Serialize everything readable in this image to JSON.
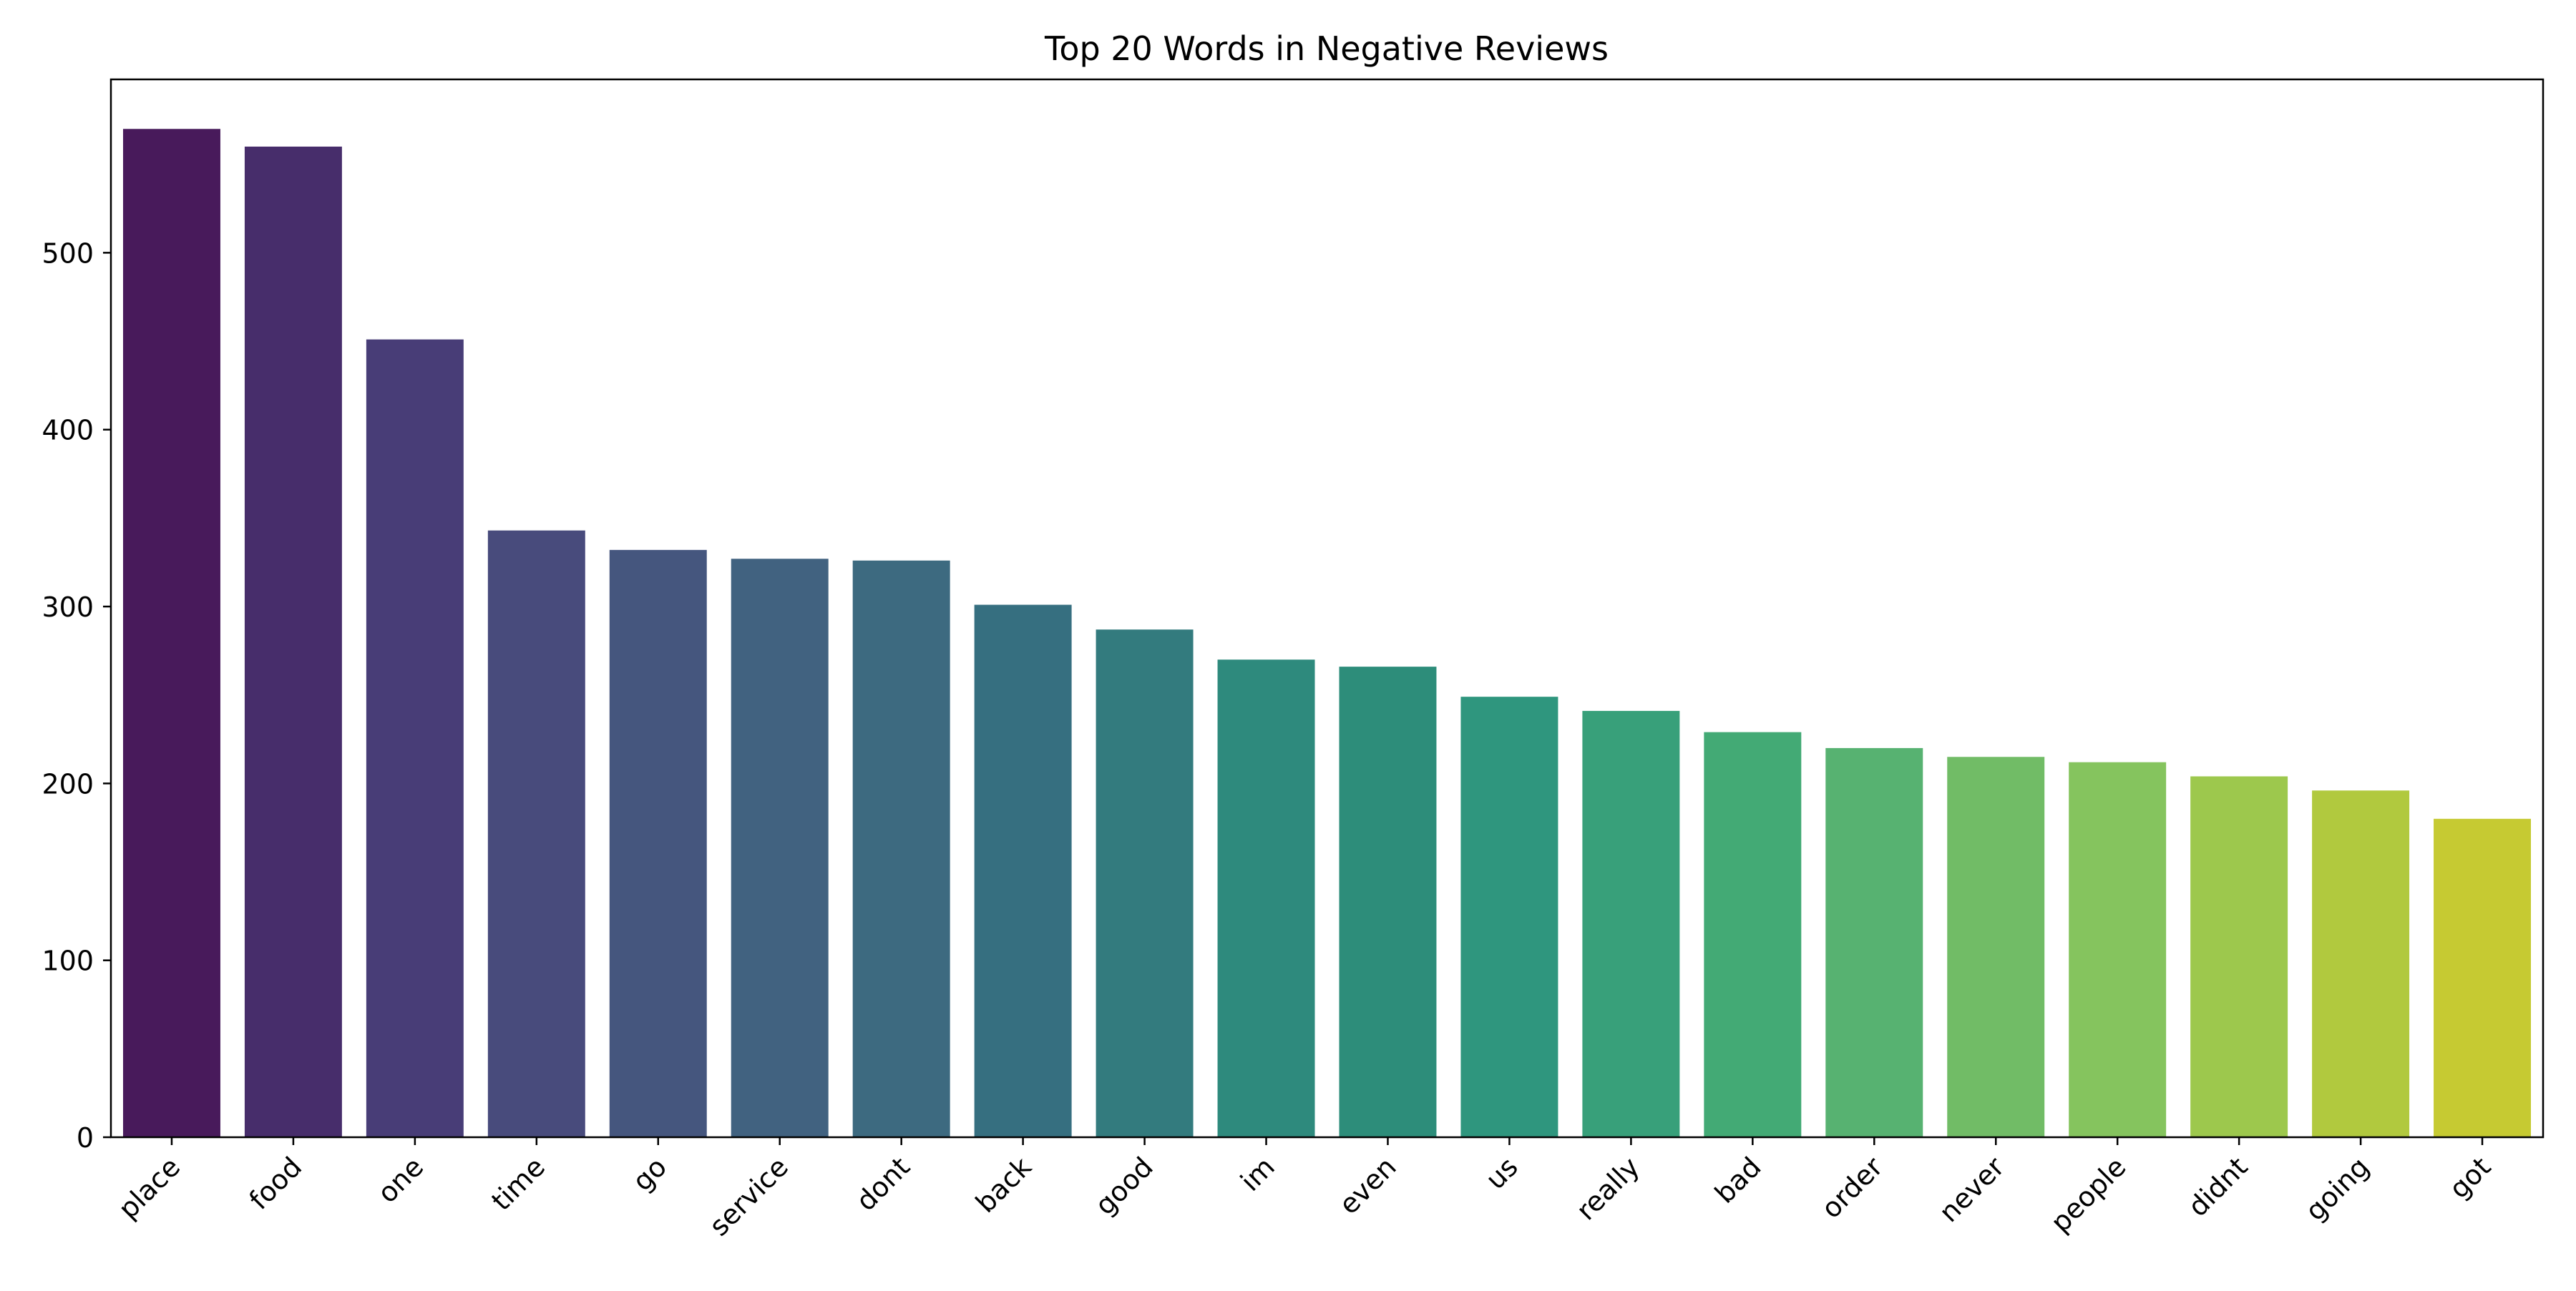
{
  "chart_data": {
    "type": "bar",
    "title": "Top 20 Words in Negative Reviews",
    "xlabel": "",
    "ylabel": "",
    "categories": [
      "place",
      "food",
      "one",
      "time",
      "go",
      "service",
      "dont",
      "back",
      "good",
      "im",
      "even",
      "us",
      "really",
      "bad",
      "order",
      "never",
      "people",
      "didnt",
      "going",
      "got"
    ],
    "values": [
      570,
      560,
      451,
      343,
      332,
      327,
      326,
      301,
      287,
      270,
      266,
      249,
      241,
      229,
      220,
      215,
      212,
      204,
      196,
      180
    ],
    "ylim": [
      0,
      598
    ],
    "yticks": [
      0,
      100,
      200,
      300,
      400,
      500
    ],
    "ytick_labels": [
      "0",
      "100",
      "200",
      "300",
      "400",
      "500"
    ],
    "grid": false,
    "legend": "none",
    "colors": [
      "#481a5b",
      "#472d6b",
      "#483d77",
      "#484b7c",
      "#45567e",
      "#416280",
      "#3d6a80",
      "#366f80",
      "#337b7e",
      "#2e8a7d",
      "#2d8d7a",
      "#2f967e",
      "#38a07a",
      "#43aa75",
      "#57b271",
      "#71bc66",
      "#85c45e",
      "#9dc84d",
      "#b1c93e",
      "#c6ca32"
    ]
  }
}
